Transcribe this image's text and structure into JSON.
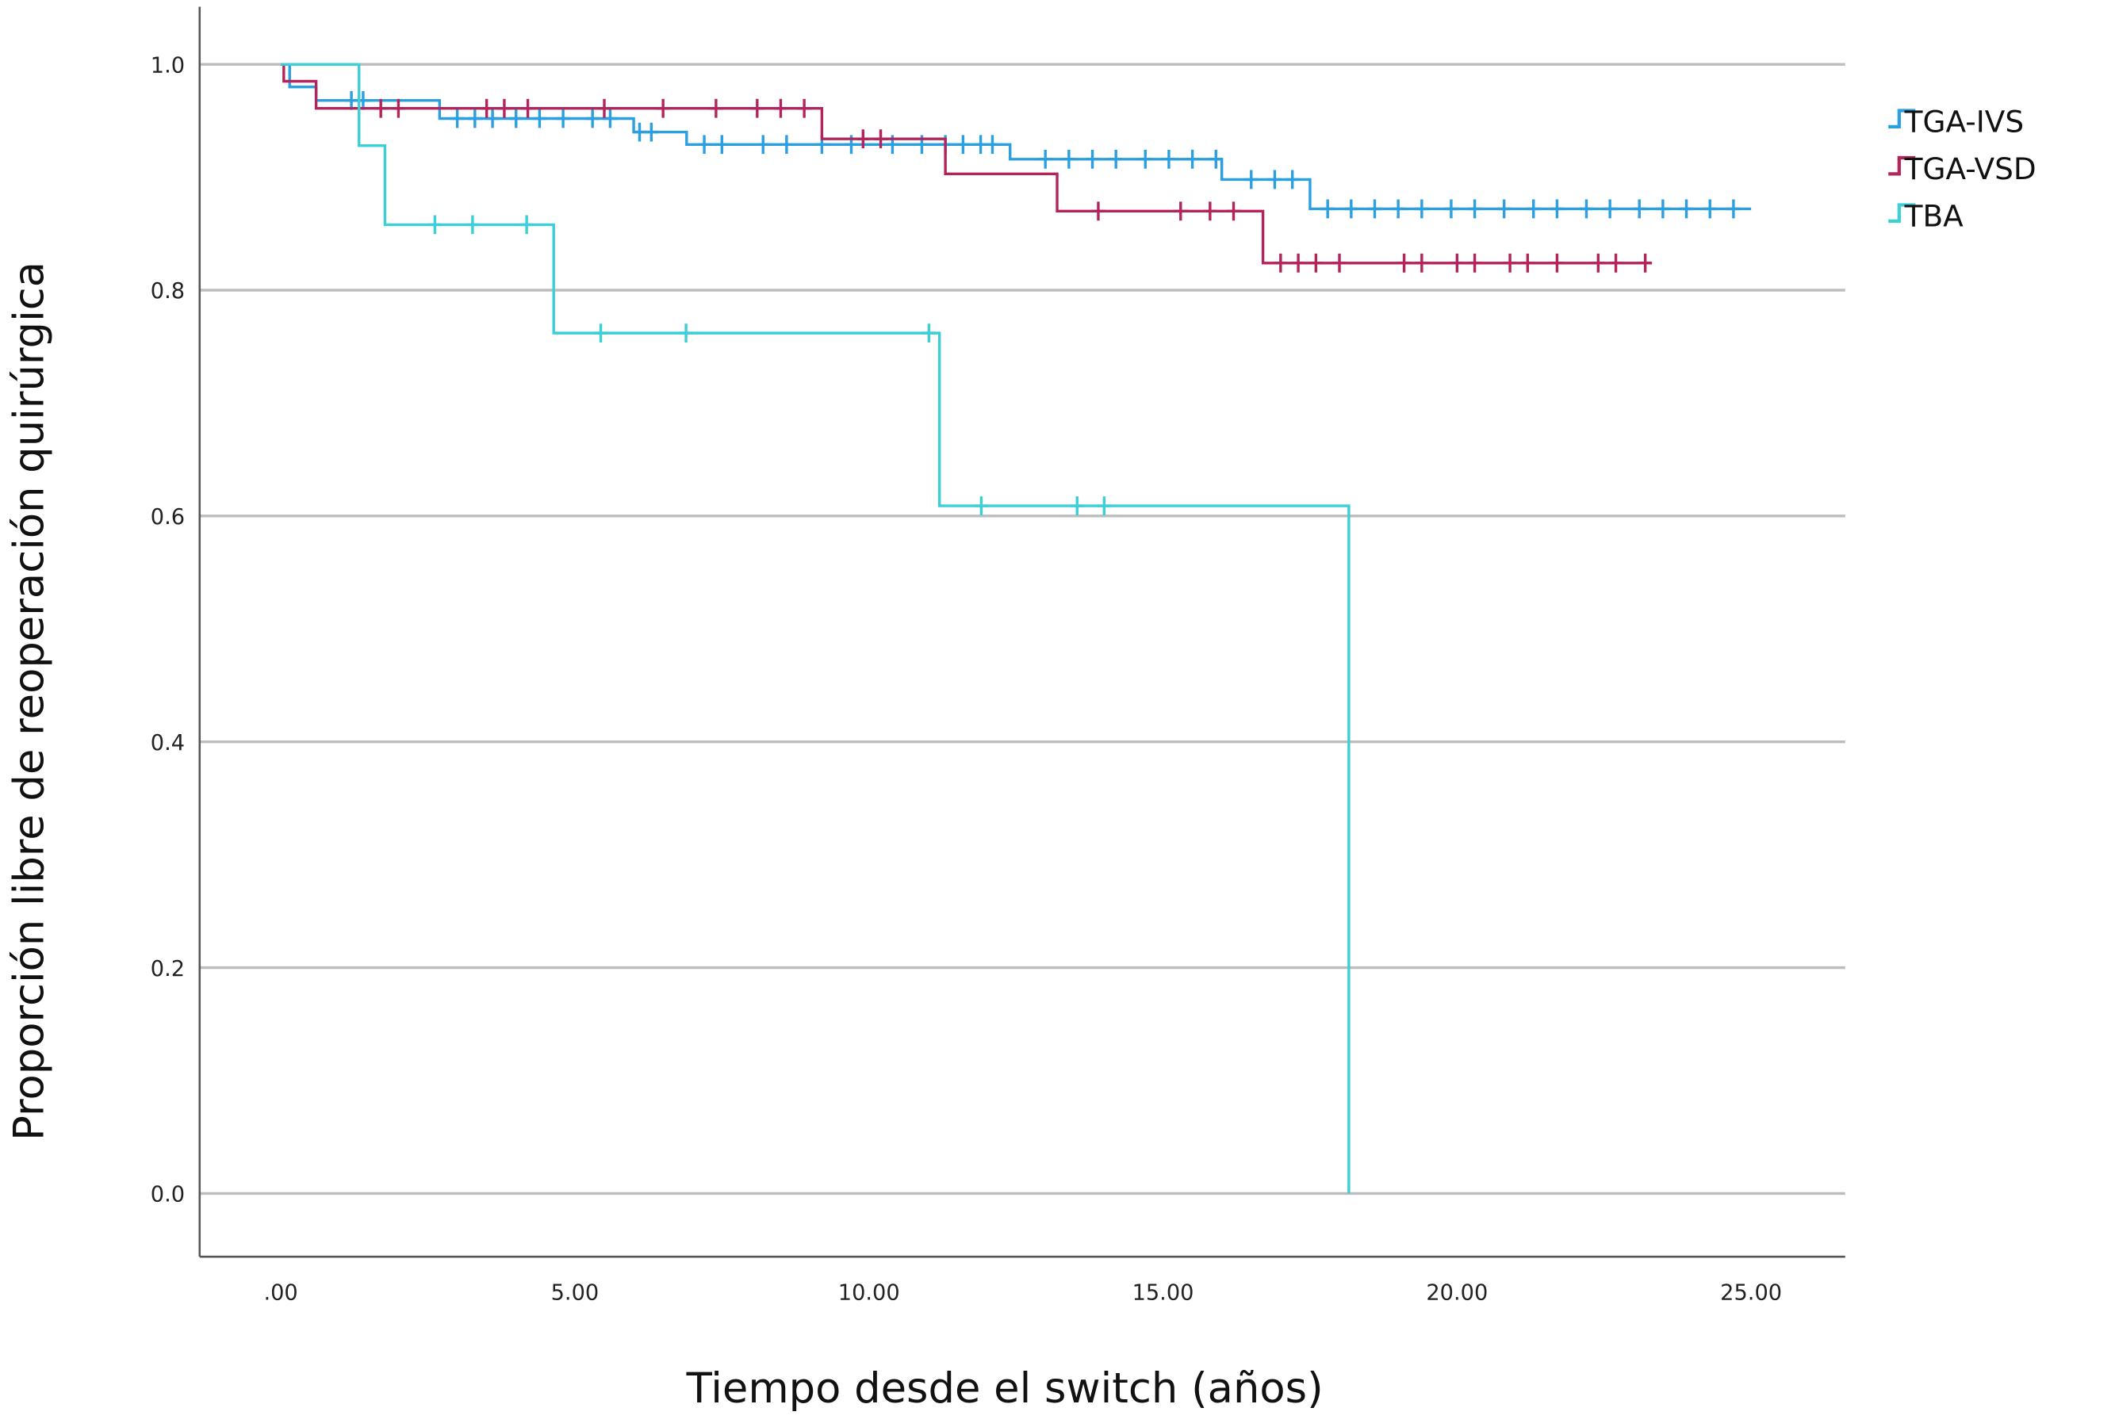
{
  "chart_data": {
    "type": "step",
    "x_label": "Tiempo desde el switch (años)",
    "y_label": "Proporción libre de reoperación quirúrgica",
    "xlim": [
      -1.38,
      26.6
    ],
    "ylim": [
      -0.056,
      1.051
    ],
    "xticks": [
      {
        "value": 0,
        "label": ".00"
      },
      {
        "value": 5,
        "label": "5.00"
      },
      {
        "value": 10,
        "label": "10.00"
      },
      {
        "value": 15,
        "label": "15.00"
      },
      {
        "value": 20,
        "label": "20.00"
      },
      {
        "value": 25,
        "label": "25.00"
      }
    ],
    "yticks": [
      {
        "value": 0,
        "label": "0.0"
      },
      0.2,
      0.4,
      0.6,
      0.8,
      {
        "value": 1,
        "label": "1.0"
      }
    ],
    "grid": true,
    "legend": "right",
    "series": [
      {
        "name": "TGA-IVS",
        "color": "#2b9fe0",
        "x": [
          0,
          0.15,
          0.6,
          2.7,
          6.0,
          6.9,
          12.4,
          16.0,
          17.5,
          25.0
        ],
        "values": [
          1.0,
          0.98,
          0.968,
          0.952,
          0.94,
          0.929,
          0.916,
          0.898,
          0.872,
          0.872
        ],
        "censored_x": [
          1.2,
          1.4,
          3.0,
          3.3,
          3.6,
          4.0,
          4.4,
          4.8,
          5.3,
          5.6,
          6.1,
          6.3,
          7.2,
          7.5,
          8.2,
          8.6,
          9.2,
          9.7,
          10.4,
          10.9,
          11.3,
          11.6,
          11.9,
          12.1,
          13.0,
          13.4,
          13.8,
          14.2,
          14.7,
          15.1,
          15.5,
          15.9,
          16.5,
          16.9,
          17.2,
          17.8,
          18.2,
          18.6,
          19.0,
          19.4,
          19.9,
          20.3,
          20.8,
          21.3,
          21.7,
          22.2,
          22.6,
          23.1,
          23.5,
          23.9,
          24.3,
          24.7
        ],
        "censored_values": [
          0.968,
          0.968,
          0.952,
          0.952,
          0.952,
          0.952,
          0.952,
          0.952,
          0.952,
          0.952,
          0.94,
          0.94,
          0.929,
          0.929,
          0.929,
          0.929,
          0.929,
          0.929,
          0.929,
          0.929,
          0.929,
          0.929,
          0.929,
          0.929,
          0.916,
          0.916,
          0.916,
          0.916,
          0.916,
          0.916,
          0.916,
          0.916,
          0.898,
          0.898,
          0.898,
          0.872,
          0.872,
          0.872,
          0.872,
          0.872,
          0.872,
          0.872,
          0.872,
          0.872,
          0.872,
          0.872,
          0.872,
          0.872,
          0.872,
          0.872,
          0.872,
          0.872
        ]
      },
      {
        "name": "TGA-VSD",
        "color": "#b3245c",
        "x": [
          0,
          0.05,
          0.6,
          9.2,
          11.3,
          13.2,
          16.7,
          23.3
        ],
        "values": [
          1.0,
          0.985,
          0.961,
          0.934,
          0.903,
          0.87,
          0.824,
          0.824
        ],
        "censored_x": [
          1.7,
          2.0,
          3.5,
          3.8,
          4.2,
          5.5,
          6.5,
          7.4,
          8.1,
          8.5,
          8.9,
          9.9,
          10.2,
          13.9,
          15.3,
          15.8,
          16.2,
          17.0,
          17.3,
          17.6,
          18.0,
          19.1,
          19.4,
          20.0,
          20.3,
          20.9,
          21.2,
          21.7,
          22.4,
          22.7,
          23.2
        ],
        "censored_values": [
          0.961,
          0.961,
          0.961,
          0.961,
          0.961,
          0.961,
          0.961,
          0.961,
          0.961,
          0.961,
          0.961,
          0.934,
          0.934,
          0.87,
          0.87,
          0.87,
          0.87,
          0.824,
          0.824,
          0.824,
          0.824,
          0.824,
          0.824,
          0.824,
          0.824,
          0.824,
          0.824,
          0.824,
          0.824,
          0.824,
          0.824
        ]
      },
      {
        "name": "TBA",
        "color": "#3ccfd6",
        "x": [
          0,
          1.33,
          1.77,
          4.64,
          11.2,
          18.16
        ],
        "values": [
          1.0,
          0.928,
          0.858,
          0.762,
          0.609,
          0.0
        ],
        "censored_x": [
          2.62,
          3.26,
          4.18,
          5.44,
          6.89,
          11.02,
          11.91,
          13.54,
          14.0
        ],
        "censored_values": [
          0.858,
          0.858,
          0.858,
          0.762,
          0.762,
          0.762,
          0.609,
          0.609,
          0.609
        ]
      }
    ]
  }
}
